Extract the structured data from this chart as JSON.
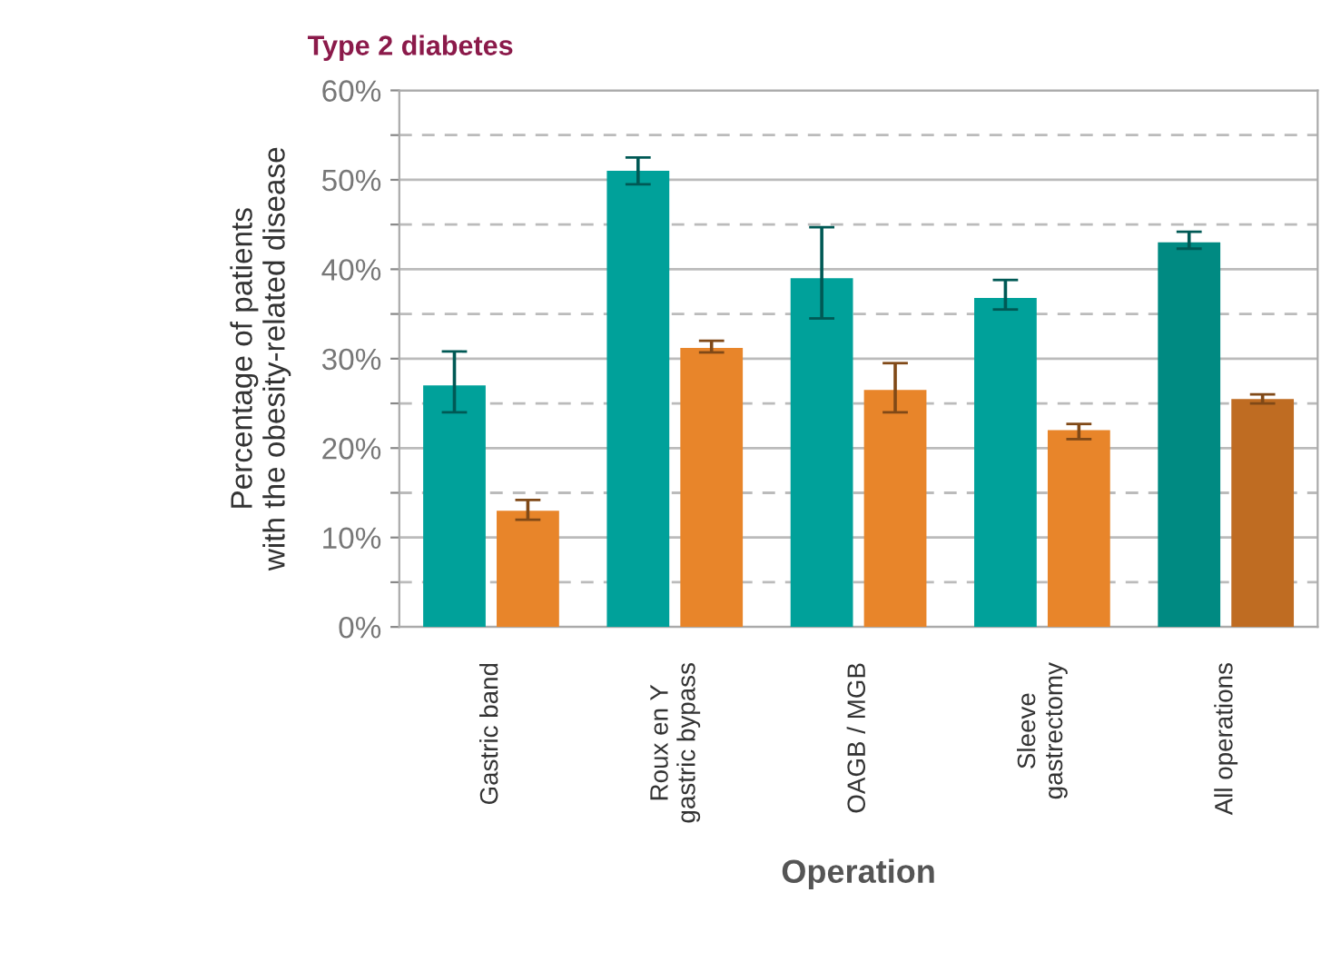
{
  "chart_data": {
    "type": "bar",
    "title": "Type 2 diabetes",
    "xlabel": "Operation",
    "ylabel": "Percentage of patients\nwith the obesity-related disease",
    "categories": [
      "Gastric band",
      "Roux en Y\ngastric bypass",
      "OAGB / MGB",
      "Sleeve\ngastrectomy",
      "All operations"
    ],
    "series": [
      {
        "color": "#00a19a",
        "colors": [
          "#00a19a",
          "#00a19a",
          "#00a19a",
          "#00a19a",
          "#008a82"
        ],
        "values": [
          27,
          51,
          39,
          36.8,
          43
        ],
        "errors": [
          [
            24,
            30.8
          ],
          [
            49.5,
            52.5
          ],
          [
            34.5,
            44.7
          ],
          [
            35.5,
            38.8
          ],
          [
            42.3,
            44.2
          ]
        ]
      },
      {
        "color": "#e8852a",
        "colors": [
          "#e8852a",
          "#e8852a",
          "#e8852a",
          "#e8852a",
          "#bf6c22"
        ],
        "values": [
          13,
          31.2,
          26.5,
          22,
          25.5
        ],
        "errors": [
          [
            12,
            14.2
          ],
          [
            30.7,
            32
          ],
          [
            24,
            29.5
          ],
          [
            21,
            22.7
          ],
          [
            25,
            26
          ]
        ]
      }
    ],
    "ylim": [
      0,
      60
    ],
    "yticks": [
      {
        "value": 0,
        "label": "0%"
      },
      {
        "value": 5,
        "label": null
      },
      {
        "value": 10,
        "label": "10%"
      },
      {
        "value": 15,
        "label": null
      },
      {
        "value": 20,
        "label": "20%"
      },
      {
        "value": 25,
        "label": null
      },
      {
        "value": 30,
        "label": "30%"
      },
      {
        "value": 35,
        "label": null
      },
      {
        "value": 40,
        "label": "40%"
      },
      {
        "value": 45,
        "label": null
      },
      {
        "value": 50,
        "label": "50%"
      },
      {
        "value": 55,
        "label": null
      },
      {
        "value": 60,
        "label": "60%"
      }
    ],
    "grid": "y"
  }
}
